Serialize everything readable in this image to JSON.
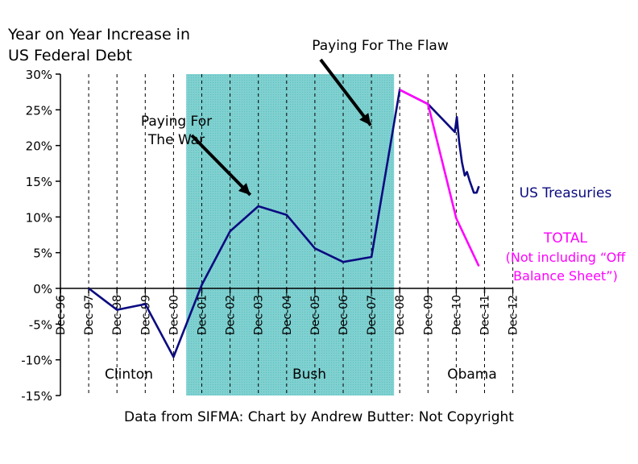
{
  "title_lines": [
    "Year on Year Increase in",
    "US Federal Debt"
  ],
  "footer": "Data from SIFMA: Chart by Andrew Butter: Not Copyright",
  "chart_data": {
    "type": "line",
    "title": "Year on Year Increase in US Federal Debt",
    "ylim": [
      -15,
      30
    ],
    "y_ticks": [
      30,
      25,
      20,
      15,
      10,
      5,
      0,
      -5,
      -10,
      -15
    ],
    "y_tick_labels": [
      "30%",
      "25%",
      "20%",
      "15%",
      "10%",
      "5%",
      "0%",
      "-5%",
      "-10%",
      "-15%"
    ],
    "x_tick_labels": [
      "Dec-96",
      "Dec-97",
      "Dec-98",
      "Dec-99",
      "Dec-00",
      "Dec-01",
      "Dec-02",
      "Dec-03",
      "Dec-04",
      "Dec-05",
      "Dec-06",
      "Dec-07",
      "Dec-08",
      "Dec-09",
      "Dec-10",
      "Dec-11",
      "Dec-12"
    ],
    "xlim": [
      0,
      16
    ],
    "shaded_region": {
      "from": 4.45,
      "to": 11.8,
      "color": "#80d0d0"
    },
    "series": [
      {
        "name": "US Treasuries",
        "color": "#0b0b80",
        "points": [
          [
            1,
            0
          ],
          [
            2,
            -3
          ],
          [
            3,
            -2.2
          ],
          [
            4,
            -9.6
          ],
          [
            5,
            0.5
          ],
          [
            6,
            8
          ],
          [
            7,
            11.5
          ],
          [
            8,
            10.3
          ],
          [
            9,
            5.6
          ],
          [
            10,
            3.7
          ],
          [
            11,
            4.4
          ],
          [
            12,
            27.8
          ],
          [
            13,
            25.8
          ],
          [
            13.95,
            21.9
          ],
          [
            14.02,
            24
          ],
          [
            14.1,
            20.6
          ],
          [
            14.2,
            17.7
          ],
          [
            14.3,
            15.8
          ],
          [
            14.38,
            16.3
          ],
          [
            14.48,
            15
          ],
          [
            14.62,
            13.4
          ],
          [
            14.72,
            13.4
          ],
          [
            14.8,
            14.3
          ]
        ]
      },
      {
        "name": "TOTAL",
        "color": "#ff00ff",
        "points": [
          [
            12,
            27.8
          ],
          [
            13,
            25.8
          ],
          [
            14,
            9.8
          ],
          [
            14.8,
            3.1
          ]
        ]
      }
    ],
    "annotations": [
      {
        "text_lines": [
          "Paying For",
          "The War"
        ],
        "arrow_to": [
          7,
          11.5
        ]
      },
      {
        "text_lines": [
          "Paying For The Flaw"
        ],
        "arrow_to": [
          12,
          27.8
        ]
      }
    ],
    "legend": [
      {
        "lines": [
          "US Treasuries"
        ],
        "color": "#0b0b80"
      },
      {
        "lines": [
          "TOTAL",
          "(Not including “Off",
          "Balance Sheet”)"
        ],
        "color": "#ff00ff"
      }
    ],
    "era_labels": [
      "Clinton",
      "Bush",
      "Obama"
    ]
  }
}
